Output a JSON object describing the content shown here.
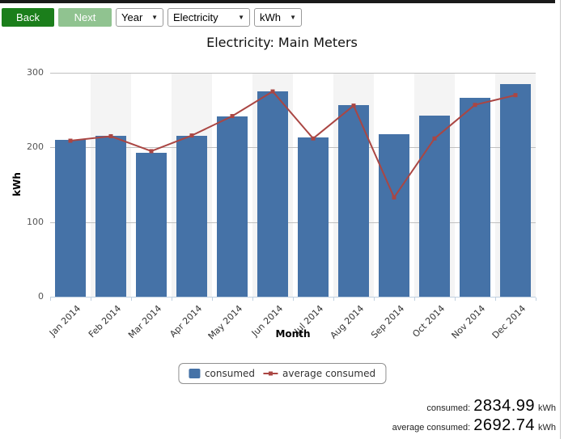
{
  "window": {
    "top_bar_color": "#1a1a1a"
  },
  "toolbar": {
    "back_label": "Back",
    "next_label": "Next",
    "back_color": "#1b7e1b",
    "next_color": "#90c390",
    "period_select": {
      "value": "Year"
    },
    "meter_select": {
      "value": "Electricity"
    },
    "unit_select": {
      "value": "kWh"
    },
    "caret": "▼"
  },
  "title": "Electricity: Main Meters",
  "chart_data": {
    "type": "bar",
    "title": "Electricity: Main Meters",
    "categories": [
      "Jan 2014",
      "Feb 2014",
      "Mar 2014",
      "Apr 2014",
      "May 2014",
      "Jun 2014",
      "Jul 2014",
      "Aug 2014",
      "Sep 2014",
      "Oct 2014",
      "Nov 2014",
      "Dec 2014"
    ],
    "series": [
      {
        "name": "consumed",
        "type": "column",
        "color": "#4572A7",
        "values": [
          210,
          216,
          193,
          216,
          242,
          275,
          213,
          257,
          218,
          243,
          267,
          285
        ]
      },
      {
        "name": "average consumed",
        "type": "line",
        "color": "#AA4643",
        "values": [
          209,
          215,
          195,
          216,
          242,
          275,
          212,
          256,
          133,
          212,
          257,
          270
        ]
      }
    ],
    "xlabel": "Month",
    "ylabel": "kWh",
    "ylim": [
      0,
      300
    ],
    "y_ticks": [
      0,
      100,
      200,
      300
    ],
    "grid": true,
    "legend_position": "bottom",
    "grid_line_color": "#c0c0c0",
    "axis_line_color": "#c0d0e0",
    "alternate_band_color": "#f4f4f4",
    "tick_label_color_y": "#555555",
    "tick_label_color_x": "#333333"
  },
  "legend": {
    "items": [
      {
        "label": "consumed",
        "color": "#4572A7",
        "marker": "square"
      },
      {
        "label": "average consumed",
        "color": "#AA4643",
        "marker": "line-diamond"
      }
    ]
  },
  "summary": {
    "rows": [
      {
        "label": "consumed:",
        "value": "2834.99",
        "unit": "kWh"
      },
      {
        "label": "average consumed:",
        "value": "2692.74",
        "unit": "kWh"
      }
    ]
  }
}
